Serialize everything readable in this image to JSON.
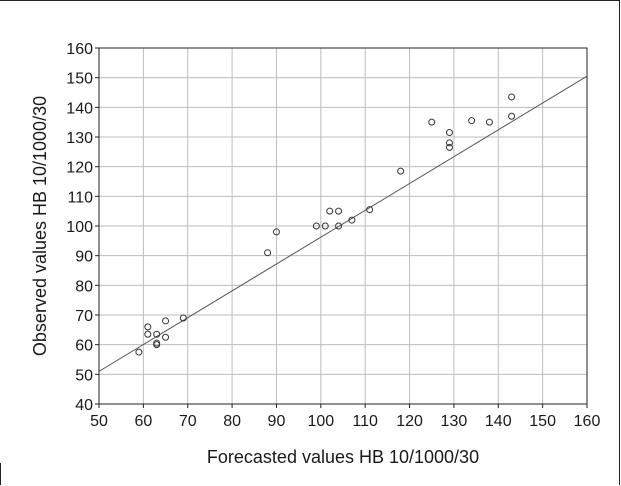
{
  "chart_data": {
    "type": "scatter",
    "title": "",
    "xlabel": "Forecasted values HB 10/1000/30",
    "ylabel": "Observed values HB 10/1000/30",
    "xlim": [
      50,
      160
    ],
    "ylim": [
      40,
      160
    ],
    "x_ticks": [
      50,
      60,
      70,
      80,
      90,
      100,
      110,
      120,
      130,
      140,
      150,
      160
    ],
    "y_ticks": [
      40,
      50,
      60,
      70,
      80,
      90,
      100,
      110,
      120,
      130,
      140,
      150,
      160
    ],
    "grid": true,
    "series": [
      {
        "marker": "open-circle",
        "color": "#333333",
        "points": [
          [
            59,
            57.5
          ],
          [
            61,
            63.5
          ],
          [
            61,
            66
          ],
          [
            63,
            60
          ],
          [
            63,
            60.5
          ],
          [
            63,
            63.5
          ],
          [
            65,
            62.5
          ],
          [
            65,
            68
          ],
          [
            69,
            69
          ],
          [
            88,
            91
          ],
          [
            90,
            98
          ],
          [
            99,
            100
          ],
          [
            101,
            100
          ],
          [
            102,
            105
          ],
          [
            104,
            100
          ],
          [
            104,
            105
          ],
          [
            107,
            102
          ],
          [
            111,
            105.5
          ],
          [
            118,
            118.5
          ],
          [
            125,
            135
          ],
          [
            129,
            131.5
          ],
          [
            129,
            128
          ],
          [
            129,
            126.5
          ],
          [
            134,
            135.5
          ],
          [
            138,
            135
          ],
          [
            143,
            143.5
          ],
          [
            143,
            137
          ]
        ]
      }
    ],
    "reference_line": {
      "x": [
        50,
        160
      ],
      "y": [
        51,
        150.5
      ],
      "color": "#555555"
    }
  }
}
